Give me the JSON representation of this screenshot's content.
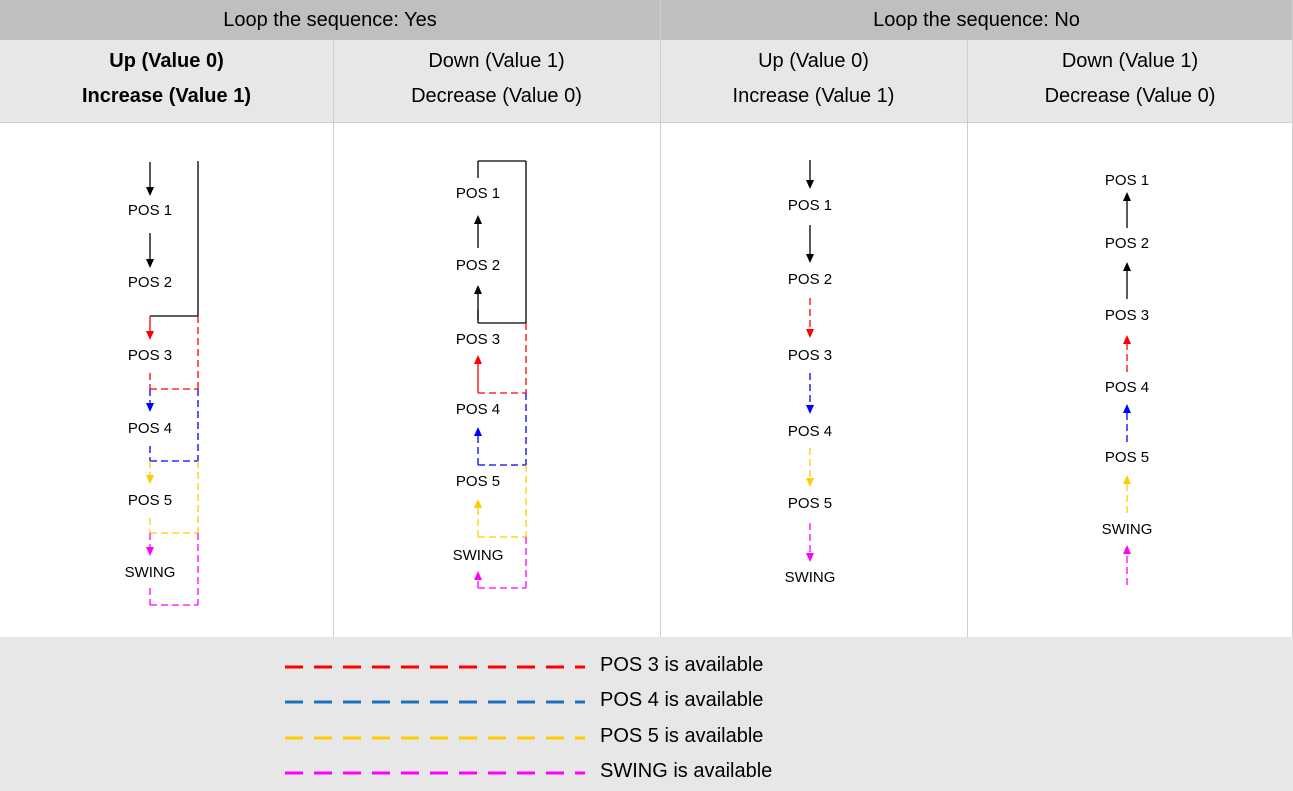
{
  "header": {
    "loop_yes": "Loop the sequence: Yes",
    "loop_no": "Loop the sequence: No"
  },
  "columns": [
    {
      "line1": "Up (Value 0)",
      "line2": "Increase (Value 1)"
    },
    {
      "line1": "Down (Value 1)",
      "line2": "Decrease (Value 0)"
    },
    {
      "line1": "Up (Value 0)",
      "line2": "Increase (Value 1)"
    },
    {
      "line1": "Down (Value 1)",
      "line2": "Decrease (Value 0)"
    }
  ],
  "positions": [
    "POS 1",
    "POS 2",
    "POS 3",
    "POS 4",
    "POS 5",
    "SWING"
  ],
  "colors": {
    "header_bg": "#bfbfbf",
    "subheader_bg": "#e7e7e7",
    "pos3": "#ff0000",
    "pos4": "#1f6fbf",
    "pos4_diagram": "#0000ff",
    "pos5": "#ffcc00",
    "swing": "#ff00ff",
    "black": "#000000"
  },
  "legend": [
    {
      "label": "POS 3 is available",
      "color": "#ff0000"
    },
    {
      "label": "POS 4 is available",
      "color": "#1f6fbf"
    },
    {
      "label": "POS 5 is available",
      "color": "#ffcc00"
    },
    {
      "label": "SWING is available",
      "color": "#ff00ff"
    }
  ]
}
